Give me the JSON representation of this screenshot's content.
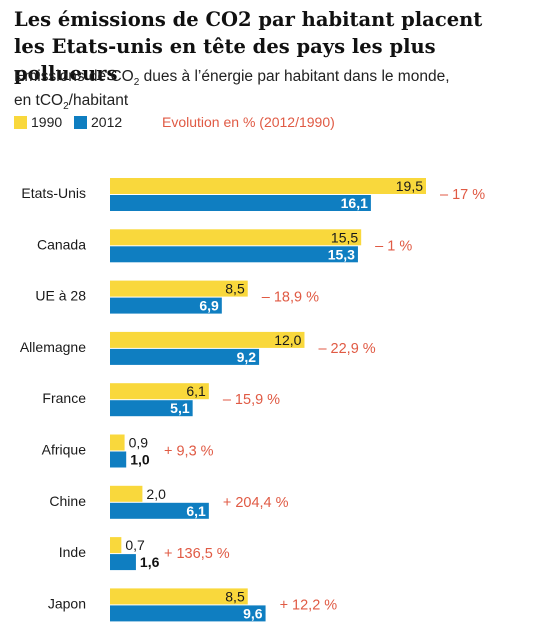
{
  "header": {
    "title_line1": "Les émissions de CO2 par habitant placent",
    "title_line2": "les Etats-unis en tête des pays les plus pollueurs",
    "subtitle_part1": "Emissions de CO",
    "subtitle_sub1": "2",
    "subtitle_part2": " dues à l’énergie par habitant dans le monde,",
    "subtitle_part3": "en tCO",
    "subtitle_sub2": "2",
    "subtitle_part4": "/habitant"
  },
  "legend": {
    "series1": "1990",
    "series2": "2012",
    "evolution_label": "Evolution en % (2012/1990)"
  },
  "colors": {
    "series1": "#f9d83c",
    "series2": "#0f7ec1",
    "evolution": "#e05a44"
  },
  "chart_data": {
    "type": "bar",
    "orientation": "horizontal",
    "categories": [
      "Etats-Unis",
      "Canada",
      "UE à 28",
      "Allemagne",
      "France",
      "Afrique",
      "Chine",
      "Inde",
      "Japon"
    ],
    "series": [
      {
        "name": "1990",
        "values": [
          19.5,
          15.5,
          8.5,
          12.0,
          6.1,
          0.9,
          2.0,
          0.7,
          8.5
        ],
        "labels": [
          "19,5",
          "15,5",
          "8,5",
          "12,0",
          "6,1",
          "0,9",
          "2,0",
          "0,7",
          "8,5"
        ]
      },
      {
        "name": "2012",
        "values": [
          16.1,
          15.3,
          6.9,
          9.2,
          5.1,
          1.0,
          6.1,
          1.6,
          9.6
        ],
        "labels": [
          "16,1",
          "15,3",
          "6,9",
          "9,2",
          "5,1",
          "1,0",
          "6,1",
          "1,6",
          "9,6"
        ]
      }
    ],
    "evolution": [
      "– 17 %",
      "– 1 %",
      "– 18,9 %",
      "– 22,9 %",
      "– 15,9 %",
      "+ 9,3 %",
      "+ 204,4 %",
      "+ 136,5 %",
      "+ 12,2 %"
    ],
    "xlim": [
      0,
      19.5
    ],
    "grid": false,
    "legend_position": "top-left"
  }
}
